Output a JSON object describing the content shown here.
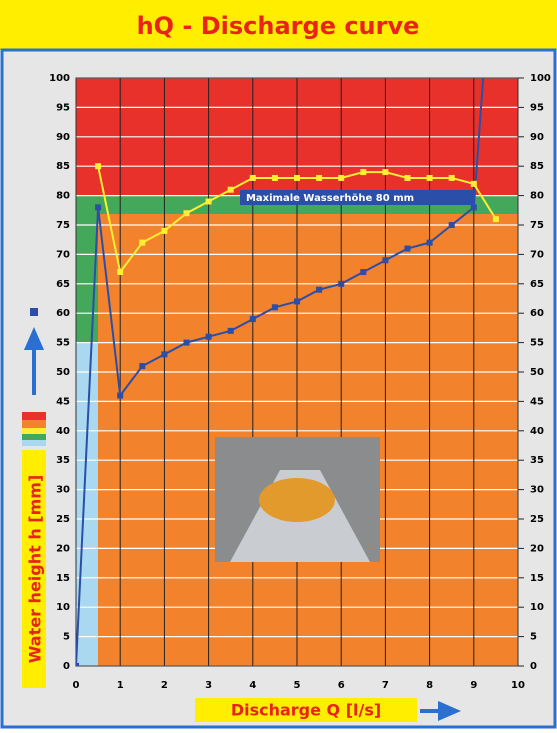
{
  "chart_data": {
    "type": "line",
    "title": "hQ - Discharge curve",
    "x_label": "Discharge Q [l/s]",
    "y_label": "Water height h [mm]",
    "annotation": "Maximale Wasserhöhe 80 mm",
    "xlim": [
      0,
      10
    ],
    "xticks": [
      0,
      1,
      2,
      3,
      4,
      5,
      6,
      7,
      8,
      9,
      10
    ],
    "ylim": [
      0,
      100
    ],
    "yticks": [
      0,
      5,
      10,
      15,
      20,
      25,
      30,
      35,
      40,
      45,
      50,
      55,
      60,
      65,
      70,
      75,
      80,
      85,
      90,
      95,
      100
    ],
    "grid": true,
    "series": [
      {
        "color": "#2b4fa8",
        "x": [
          0,
          0.5,
          1,
          1.5,
          2,
          2.5,
          3,
          3.5,
          4,
          4.5,
          5,
          5.5,
          6,
          6.5,
          7,
          7.5,
          8,
          8.5,
          9,
          9.25
        ],
        "values": [
          0,
          78,
          46,
          51,
          53,
          55,
          56,
          57,
          59,
          61,
          62,
          64,
          65,
          67,
          69,
          71,
          72,
          75,
          78,
          104
        ]
      },
      {
        "color": "#ffee33",
        "x": [
          0.5,
          1,
          1.5,
          2,
          2.5,
          3,
          3.5,
          4,
          4.5,
          5,
          5.5,
          6,
          6.5,
          7,
          7.5,
          8,
          8.5,
          9,
          9.5
        ],
        "values": [
          85,
          67,
          72,
          74,
          77,
          79,
          81,
          83,
          83,
          83,
          83,
          83,
          84,
          84,
          83,
          83,
          83,
          82,
          76
        ]
      }
    ]
  }
}
